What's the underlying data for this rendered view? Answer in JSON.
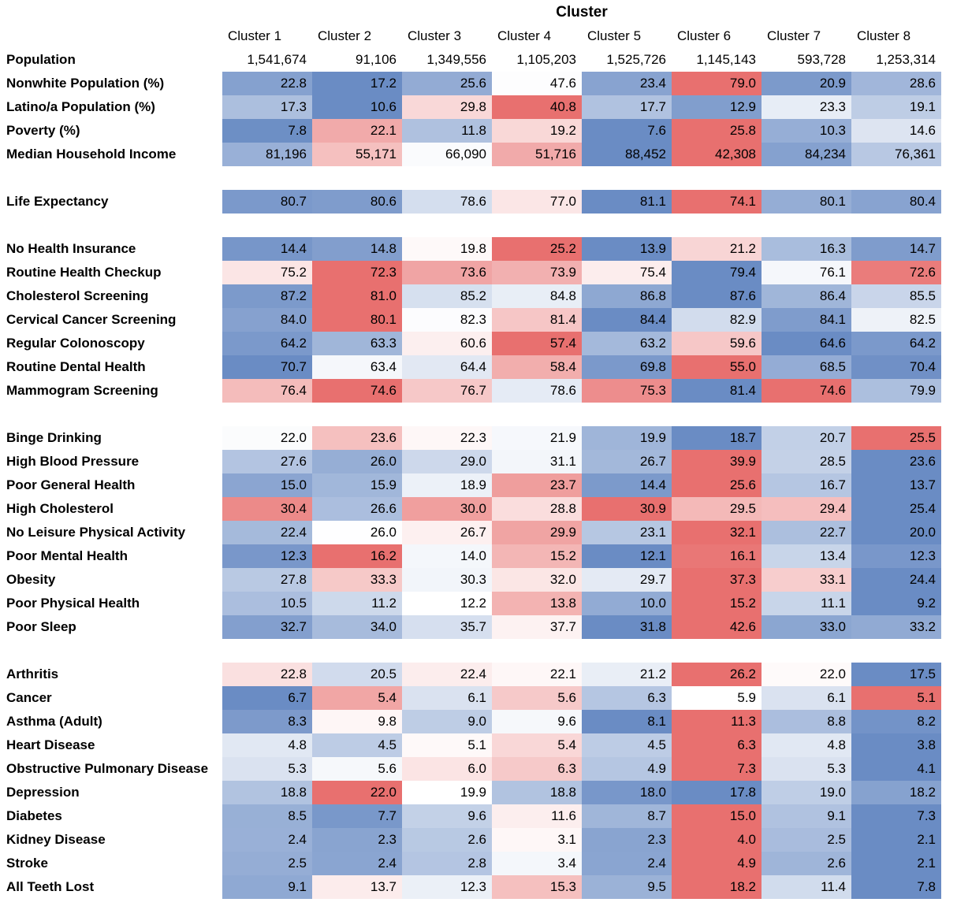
{
  "chart_data": {
    "type": "heatmap",
    "title": "Cluster",
    "colors": {
      "low": "#6a8cc4",
      "mid": "#ffffff",
      "high": "#e8706f"
    },
    "columns": [
      "Cluster 1",
      "Cluster 2",
      "Cluster 3",
      "Cluster 4",
      "Cluster 5",
      "Cluster 6",
      "Cluster 7",
      "Cluster 8"
    ],
    "groups": [
      {
        "rows": [
          {
            "label": "Population",
            "colored": false,
            "values": [
              "1,541,674",
              "91,106",
              "1,349,556",
              "1,105,203",
              "1,525,726",
              "1,145,143",
              "593,728",
              "1,253,314"
            ]
          },
          {
            "label": "Nonwhite Population (%)",
            "colored": true,
            "values": [
              "22.8",
              "17.2",
              "25.6",
              "47.6",
              "23.4",
              "79.0",
              "20.9",
              "28.6"
            ]
          },
          {
            "label": "Latino/a Population (%)",
            "colored": true,
            "values": [
              "17.3",
              "10.6",
              "29.8",
              "40.8",
              "17.7",
              "12.9",
              "23.3",
              "19.1"
            ]
          },
          {
            "label": "Poverty (%)",
            "colored": true,
            "values": [
              "7.8",
              "22.1",
              "11.8",
              "19.2",
              "7.6",
              "25.8",
              "10.3",
              "14.6"
            ]
          },
          {
            "label": "Median Household Income",
            "colored": true,
            "invert": true,
            "values": [
              "81,196",
              "55,171",
              "66,090",
              "51,716",
              "88,452",
              "42,308",
              "84,234",
              "76,361"
            ]
          }
        ]
      },
      {
        "rows": [
          {
            "label": "Life Expectancy",
            "colored": true,
            "invert": true,
            "values": [
              "80.7",
              "80.6",
              "78.6",
              "77.0",
              "81.1",
              "74.1",
              "80.1",
              "80.4"
            ]
          }
        ]
      },
      {
        "rows": [
          {
            "label": "No Health Insurance",
            "colored": true,
            "values": [
              "14.4",
              "14.8",
              "19.8",
              "25.2",
              "13.9",
              "21.2",
              "16.3",
              "14.7"
            ]
          },
          {
            "label": "Routine Health Checkup",
            "colored": true,
            "invert": true,
            "values": [
              "75.2",
              "72.3",
              "73.6",
              "73.9",
              "75.4",
              "79.4",
              "76.1",
              "72.6"
            ]
          },
          {
            "label": "Cholesterol Screening",
            "colored": true,
            "invert": true,
            "values": [
              "87.2",
              "81.0",
              "85.2",
              "84.8",
              "86.8",
              "87.6",
              "86.4",
              "85.5"
            ]
          },
          {
            "label": "Cervical Cancer Screening",
            "colored": true,
            "invert": true,
            "values": [
              "84.0",
              "80.1",
              "82.3",
              "81.4",
              "84.4",
              "82.9",
              "84.1",
              "82.5"
            ]
          },
          {
            "label": "Regular Colonoscopy",
            "colored": true,
            "invert": true,
            "values": [
              "64.2",
              "63.3",
              "60.6",
              "57.4",
              "63.2",
              "59.6",
              "64.6",
              "64.2"
            ]
          },
          {
            "label": "Routine Dental Health",
            "colored": true,
            "invert": true,
            "values": [
              "70.7",
              "63.4",
              "64.4",
              "58.4",
              "69.8",
              "55.0",
              "68.5",
              "70.4"
            ]
          },
          {
            "label": "Mammogram Screening",
            "colored": true,
            "invert": true,
            "values": [
              "76.4",
              "74.6",
              "76.7",
              "78.6",
              "75.3",
              "81.4",
              "74.6",
              "79.9"
            ]
          }
        ]
      },
      {
        "rows": [
          {
            "label": "Binge Drinking",
            "colored": true,
            "values": [
              "22.0",
              "23.6",
              "22.3",
              "21.9",
              "19.9",
              "18.7",
              "20.7",
              "25.5"
            ]
          },
          {
            "label": "High Blood Pressure",
            "colored": true,
            "values": [
              "27.6",
              "26.0",
              "29.0",
              "31.1",
              "26.7",
              "39.9",
              "28.5",
              "23.6"
            ]
          },
          {
            "label": "Poor General Health",
            "colored": true,
            "values": [
              "15.0",
              "15.9",
              "18.9",
              "23.7",
              "14.4",
              "25.6",
              "16.7",
              "13.7"
            ]
          },
          {
            "label": "High Cholesterol",
            "colored": true,
            "values": [
              "30.4",
              "26.6",
              "30.0",
              "28.8",
              "30.9",
              "29.5",
              "29.4",
              "25.4"
            ]
          },
          {
            "label": "No Leisure Physical Activity",
            "colored": true,
            "values": [
              "22.4",
              "26.0",
              "26.7",
              "29.9",
              "23.1",
              "32.1",
              "22.7",
              "20.0"
            ]
          },
          {
            "label": "Poor Mental Health",
            "colored": true,
            "values": [
              "12.3",
              "16.2",
              "14.0",
              "15.2",
              "12.1",
              "16.1",
              "13.4",
              "12.3"
            ]
          },
          {
            "label": "Obesity",
            "colored": true,
            "values": [
              "27.8",
              "33.3",
              "30.3",
              "32.0",
              "29.7",
              "37.3",
              "33.1",
              "24.4"
            ]
          },
          {
            "label": "Poor Physical Health",
            "colored": true,
            "values": [
              "10.5",
              "11.2",
              "12.2",
              "13.8",
              "10.0",
              "15.2",
              "11.1",
              "9.2"
            ]
          },
          {
            "label": "Poor Sleep",
            "colored": true,
            "values": [
              "32.7",
              "34.0",
              "35.7",
              "37.7",
              "31.8",
              "42.6",
              "33.0",
              "33.2"
            ]
          }
        ]
      },
      {
        "rows": [
          {
            "label": "Arthritis",
            "colored": true,
            "values": [
              "22.8",
              "20.5",
              "22.4",
              "22.1",
              "21.2",
              "26.2",
              "22.0",
              "17.5"
            ]
          },
          {
            "label": "Cancer",
            "colored": true,
            "values": [
              "6.7",
              "5.4",
              "6.1",
              "5.6",
              "6.3",
              "5.9",
              "6.1",
              "5.1"
            ],
            "invert": true
          },
          {
            "label": "Asthma (Adult)",
            "colored": true,
            "values": [
              "8.3",
              "9.8",
              "9.0",
              "9.6",
              "8.1",
              "11.3",
              "8.8",
              "8.2"
            ]
          },
          {
            "label": "Heart Disease",
            "colored": true,
            "values": [
              "4.8",
              "4.5",
              "5.1",
              "5.4",
              "4.5",
              "6.3",
              "4.8",
              "3.8"
            ]
          },
          {
            "label": "Obstructive Pulmonary Disease",
            "colored": true,
            "values": [
              "5.3",
              "5.6",
              "6.0",
              "6.3",
              "4.9",
              "7.3",
              "5.3",
              "4.1"
            ]
          },
          {
            "label": "Depression",
            "colored": true,
            "values": [
              "18.8",
              "22.0",
              "19.9",
              "18.8",
              "18.0",
              "17.8",
              "19.0",
              "18.2"
            ]
          },
          {
            "label": "Diabetes",
            "colored": true,
            "values": [
              "8.5",
              "7.7",
              "9.6",
              "11.6",
              "8.7",
              "15.0",
              "9.1",
              "7.3"
            ]
          },
          {
            "label": "Kidney Disease",
            "colored": true,
            "values": [
              "2.4",
              "2.3",
              "2.6",
              "3.1",
              "2.3",
              "4.0",
              "2.5",
              "2.1"
            ]
          },
          {
            "label": "Stroke",
            "colored": true,
            "values": [
              "2.5",
              "2.4",
              "2.8",
              "3.4",
              "2.4",
              "4.9",
              "2.6",
              "2.1"
            ]
          },
          {
            "label": "All Teeth Lost",
            "colored": true,
            "values": [
              "9.1",
              "13.7",
              "12.3",
              "15.3",
              "9.5",
              "18.2",
              "11.4",
              "7.8"
            ]
          }
        ]
      }
    ]
  }
}
